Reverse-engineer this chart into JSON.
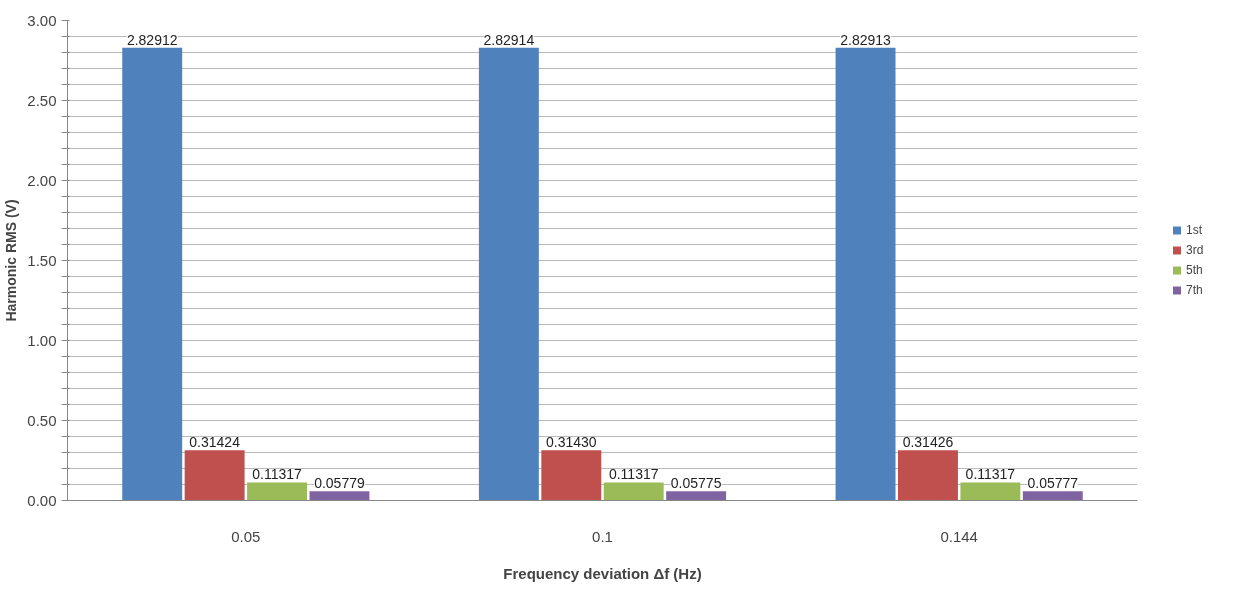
{
  "chart_data": {
    "type": "bar",
    "xlabel": "Frequency deviation Δf (Hz)",
    "ylabel": "Harmonic RMS (V)",
    "categories": [
      "0.05",
      "0.1",
      "0.144"
    ],
    "series": [
      {
        "name": "1st",
        "color": "#4f81bd",
        "values": [
          2.82912,
          2.82914,
          2.82913
        ],
        "value_labels": [
          "2.82912",
          "2.82914",
          "2.82913"
        ]
      },
      {
        "name": "3rd",
        "color": "#c0504d",
        "values": [
          0.31424,
          0.3143,
          0.31426
        ],
        "value_labels": [
          "0.31424",
          "0.31430",
          "0.31426"
        ]
      },
      {
        "name": "5th",
        "color": "#9bbb59",
        "values": [
          0.11317,
          0.11317,
          0.11317
        ],
        "value_labels": [
          "0.11317",
          "0.11317",
          "0.11317"
        ]
      },
      {
        "name": "7th",
        "color": "#8064a2",
        "values": [
          0.05779,
          0.05775,
          0.05777
        ],
        "value_labels": [
          "0.05779",
          "0.05775",
          "0.05777"
        ]
      }
    ],
    "ylim": [
      0,
      3
    ],
    "yticks": [
      "0.00",
      {
        "value": 0.1,
        "label": null
      },
      {
        "value": 0.2,
        "label": null
      },
      {
        "value": 0.3,
        "label": null
      },
      {
        "value": 0.4,
        "label": null
      },
      {
        "value": 0.5,
        "label": "0.50"
      },
      {
        "value": 0.6,
        "label": null
      },
      {
        "value": 0.7,
        "label": null
      },
      {
        "value": 0.8,
        "label": null
      },
      {
        "value": 0.9,
        "label": null
      },
      {
        "value": 1.0,
        "label": "1.00"
      },
      {
        "value": 1.1,
        "label": null
      },
      {
        "value": 1.2,
        "label": null
      },
      {
        "value": 1.3,
        "label": null
      },
      {
        "value": 1.4,
        "label": null
      },
      {
        "value": 1.5,
        "label": "1.50"
      },
      {
        "value": 1.6,
        "label": null
      },
      {
        "value": 1.7,
        "label": null
      },
      {
        "value": 1.8,
        "label": null
      },
      {
        "value": 1.9,
        "label": null
      },
      {
        "value": 2.0,
        "label": "2.00"
      },
      {
        "value": 2.1,
        "label": null
      },
      {
        "value": 2.2,
        "label": null
      },
      {
        "value": 2.3,
        "label": null
      },
      {
        "value": 2.4,
        "label": null
      },
      {
        "value": 2.5,
        "label": "2.50"
      },
      {
        "value": 2.6,
        "label": null
      },
      {
        "value": 2.7,
        "label": null
      },
      {
        "value": 2.8,
        "label": null
      },
      {
        "value": 2.9,
        "label": null
      },
      {
        "value": 3.0,
        "label": "3.00"
      }
    ],
    "grid": "y",
    "legend": "right"
  }
}
